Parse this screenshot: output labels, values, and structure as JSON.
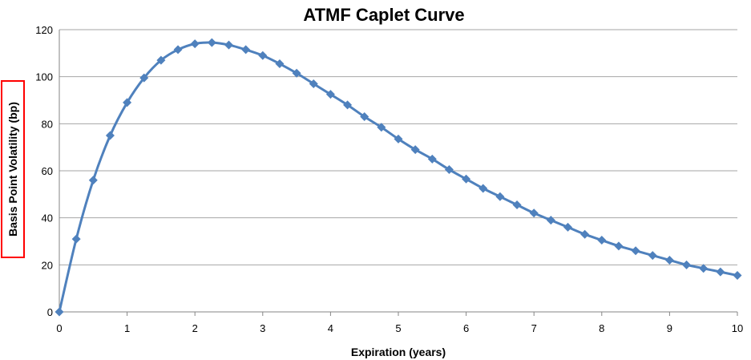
{
  "chart_data": {
    "type": "line",
    "title": "ATMF Caplet Curve",
    "xlabel": "Expiration (years)",
    "ylabel": "Basis Point Volatility (bp)",
    "xlim": [
      0,
      10
    ],
    "ylim": [
      0,
      120
    ],
    "x_ticks": [
      "0",
      "1",
      "2",
      "3",
      "4",
      "5",
      "6",
      "7",
      "8",
      "9",
      "10"
    ],
    "y_ticks": [
      "0",
      "20",
      "40",
      "60",
      "80",
      "100",
      "120"
    ],
    "grid": true,
    "legend": "none",
    "colors": {
      "series": "#4f81bd",
      "ylabel_box": "#ff0000",
      "grid": "#a6a6a6"
    },
    "series": [
      {
        "marker": "diamond",
        "x": [
          0,
          0.25,
          0.5,
          0.75,
          1,
          1.25,
          1.5,
          1.75,
          2,
          2.25,
          2.5,
          2.75,
          3,
          3.25,
          3.5,
          3.75,
          4,
          4.25,
          4.5,
          4.75,
          5,
          5.25,
          5.5,
          5.75,
          6,
          6.25,
          6.5,
          6.75,
          7,
          7.25,
          7.5,
          7.75,
          8,
          8.25,
          8.5,
          8.75,
          9,
          9.25,
          9.5,
          9.75,
          10
        ],
        "values": [
          0,
          31,
          56,
          75,
          89,
          99.5,
          107,
          111.5,
          114,
          114.5,
          113.5,
          111.5,
          109,
          105.5,
          101.5,
          97,
          92.5,
          88,
          83,
          78.5,
          73.5,
          69,
          65,
          60.5,
          56.5,
          52.5,
          49,
          45.5,
          42,
          39,
          36,
          33,
          30.5,
          28,
          26,
          24,
          22,
          20,
          18.5,
          17,
          15.5
        ]
      }
    ]
  }
}
